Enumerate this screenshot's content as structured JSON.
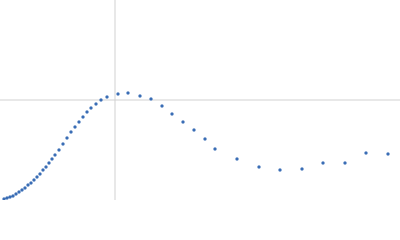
{
  "chart_data": {
    "type": "scatter",
    "color": "#3a6db5",
    "xlim": [
      0,
      400
    ],
    "ylim": [
      0,
      200
    ],
    "crosshair": {
      "x": 115,
      "y": 100
    },
    "x": [
      4,
      7,
      10,
      13,
      16,
      19,
      22,
      25,
      28,
      31,
      34,
      37,
      40,
      43,
      46,
      49,
      52,
      55,
      59,
      63,
      67,
      71,
      75,
      79,
      83,
      87,
      91,
      96,
      101,
      107,
      118,
      128,
      140,
      151,
      162,
      172,
      183,
      194,
      205,
      215,
      237,
      259,
      280,
      302,
      323,
      345,
      366,
      388
    ],
    "values": [
      1,
      2,
      3,
      4,
      6,
      8,
      10,
      12,
      15,
      17,
      20,
      23,
      26,
      30,
      33,
      37,
      41,
      45,
      50,
      56,
      62,
      68,
      73,
      78,
      83,
      88,
      92,
      96,
      100,
      103,
      106,
      107,
      104,
      101,
      94,
      86,
      78,
      70,
      61,
      51,
      41,
      33,
      30,
      31,
      37,
      37,
      47,
      46
    ]
  }
}
